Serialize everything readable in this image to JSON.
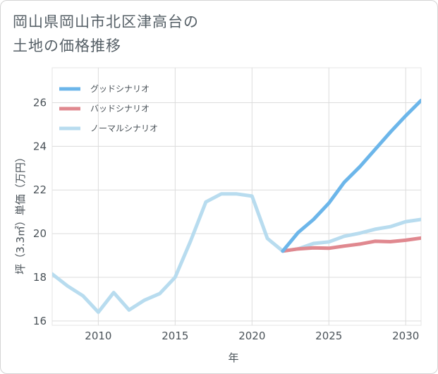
{
  "title": "岡山県岡山市北区津高台の\n土地の価格推移",
  "chart_data": {
    "type": "line",
    "xlabel": "年",
    "ylabel": "坪（3.3㎡）単価（万円）",
    "xlim": [
      2007,
      2031
    ],
    "ylim": [
      15.8,
      27.6
    ],
    "xticks": [
      2010,
      2015,
      2020,
      2025,
      2030
    ],
    "yticks": [
      16,
      18,
      20,
      22,
      24,
      26
    ],
    "legend_position": "top-left",
    "series": [
      {
        "name": "グッドシナリオ",
        "color": "#6cb6ea",
        "x": [
          2022,
          2023,
          2024,
          2025,
          2026,
          2027,
          2028,
          2029,
          2030,
          2031
        ],
        "y": [
          19.2,
          20.05,
          20.65,
          21.4,
          22.35,
          23.05,
          23.85,
          24.65,
          25.4,
          26.1
        ]
      },
      {
        "name": "バッドシナリオ",
        "color": "#e0888f",
        "x": [
          2022,
          2023,
          2024,
          2025,
          2026,
          2027,
          2028,
          2029,
          2030,
          2031
        ],
        "y": [
          19.2,
          19.3,
          19.35,
          19.33,
          19.43,
          19.52,
          19.65,
          19.63,
          19.7,
          19.8
        ]
      },
      {
        "name": "ノーマルシナリオ",
        "color": "#b8dcef",
        "x": [
          2007,
          2008,
          2009,
          2010,
          2011,
          2012,
          2013,
          2014,
          2015,
          2016,
          2017,
          2018,
          2019,
          2020,
          2021,
          2022,
          2023,
          2024,
          2025,
          2026,
          2027,
          2028,
          2029,
          2030,
          2031
        ],
        "y": [
          18.15,
          17.6,
          17.15,
          16.4,
          17.3,
          16.5,
          16.95,
          17.25,
          18.0,
          19.65,
          21.45,
          21.82,
          21.82,
          21.72,
          19.78,
          19.2,
          19.3,
          19.55,
          19.62,
          19.88,
          20.02,
          20.2,
          20.32,
          20.55,
          20.65
        ]
      }
    ]
  }
}
